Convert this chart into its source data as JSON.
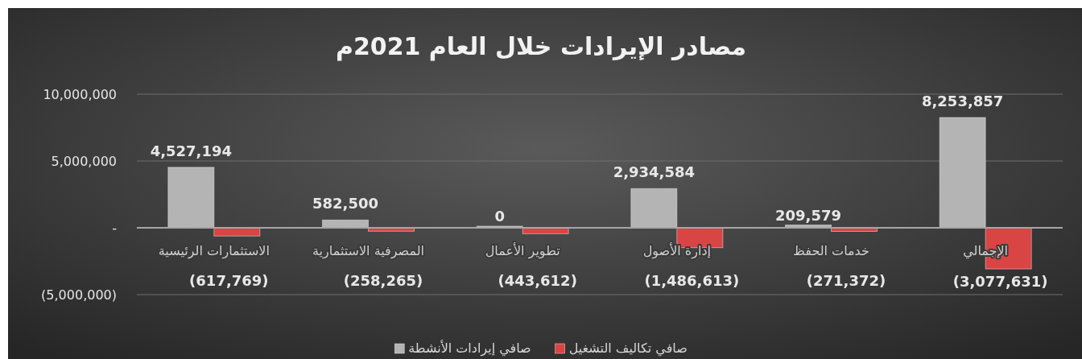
{
  "chart_data": {
    "type": "bar",
    "title": "مصادر الإيرادات خلال العام 2021م",
    "categories": [
      "الاستثمارات الرئيسية",
      "المصرفية الاستثمارية",
      "تطوير الأعمال",
      "إدارة الأصول",
      "خدمات الحفظ",
      "الإجمالي"
    ],
    "series": [
      {
        "name": "صافي إيرادات الأنشطة",
        "color": "#b4b4b4",
        "values": [
          4527194,
          582500,
          0,
          2934584,
          209579,
          8253857
        ],
        "value_labels": [
          "4,527,194",
          "582,500",
          "0",
          "2,934,584",
          "209,579",
          "8,253,857"
        ]
      },
      {
        "name": "صافي تكاليف التشغيل",
        "color": "#d94444",
        "values": [
          -617769,
          -258265,
          -443612,
          -1486613,
          -271372,
          -3077631
        ],
        "value_labels": [
          "(617,769)",
          "(258,265)",
          "(443,612)",
          "(1,486,613)",
          "(271,372)",
          "(3,077,631)"
        ]
      }
    ],
    "ylim": [
      -5000000,
      10000000
    ],
    "yticks": [
      {
        "value": -5000000,
        "label": "(5,000,000)"
      },
      {
        "value": 0,
        "label": "-"
      },
      {
        "value": 5000000,
        "label": "5,000,000"
      },
      {
        "value": 10000000,
        "label": "10,000,000"
      }
    ],
    "grid": "y",
    "legend": "bottom"
  }
}
